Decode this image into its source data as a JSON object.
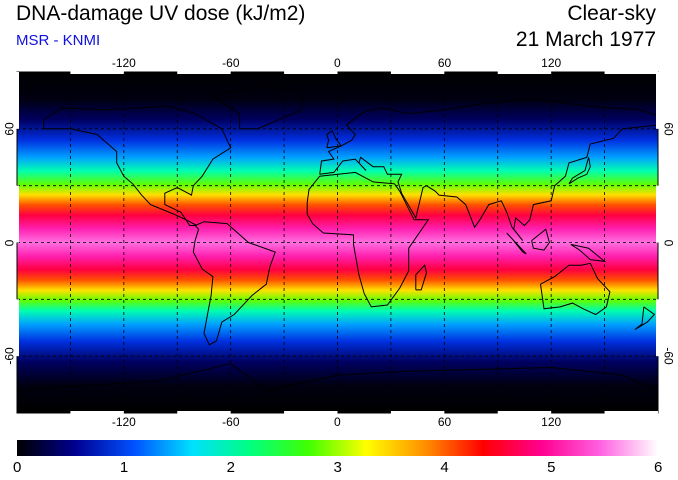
{
  "header": {
    "title": "DNA-damage UV dose (kJ/m2)",
    "credit": "MSR - KNMI",
    "condition": "Clear-sky",
    "date": "21 March 1977"
  },
  "map": {
    "projection": "equirectangular",
    "lon_range": [
      -180,
      180
    ],
    "lat_range": [
      -90,
      90
    ],
    "lon_ticks": [
      "-120",
      "-60",
      "0",
      "60",
      "120"
    ],
    "lat_ticks": [
      "60",
      "0",
      "-60"
    ],
    "grid_lines_dashed": true,
    "grid_lon_step": 30,
    "grid_lat_step": 30,
    "coastlines": true
  },
  "colorbar": {
    "min": 0,
    "max": 6,
    "labels": [
      "0",
      "1",
      "2",
      "3",
      "4",
      "5",
      "6"
    ],
    "colors": [
      "#000000",
      "#000090",
      "#0050ff",
      "#00e0ff",
      "#00ff80",
      "#40ff00",
      "#ffff00",
      "#ff9000",
      "#ff0000",
      "#ff0090",
      "#ff60e0",
      "#ffffff"
    ]
  }
}
